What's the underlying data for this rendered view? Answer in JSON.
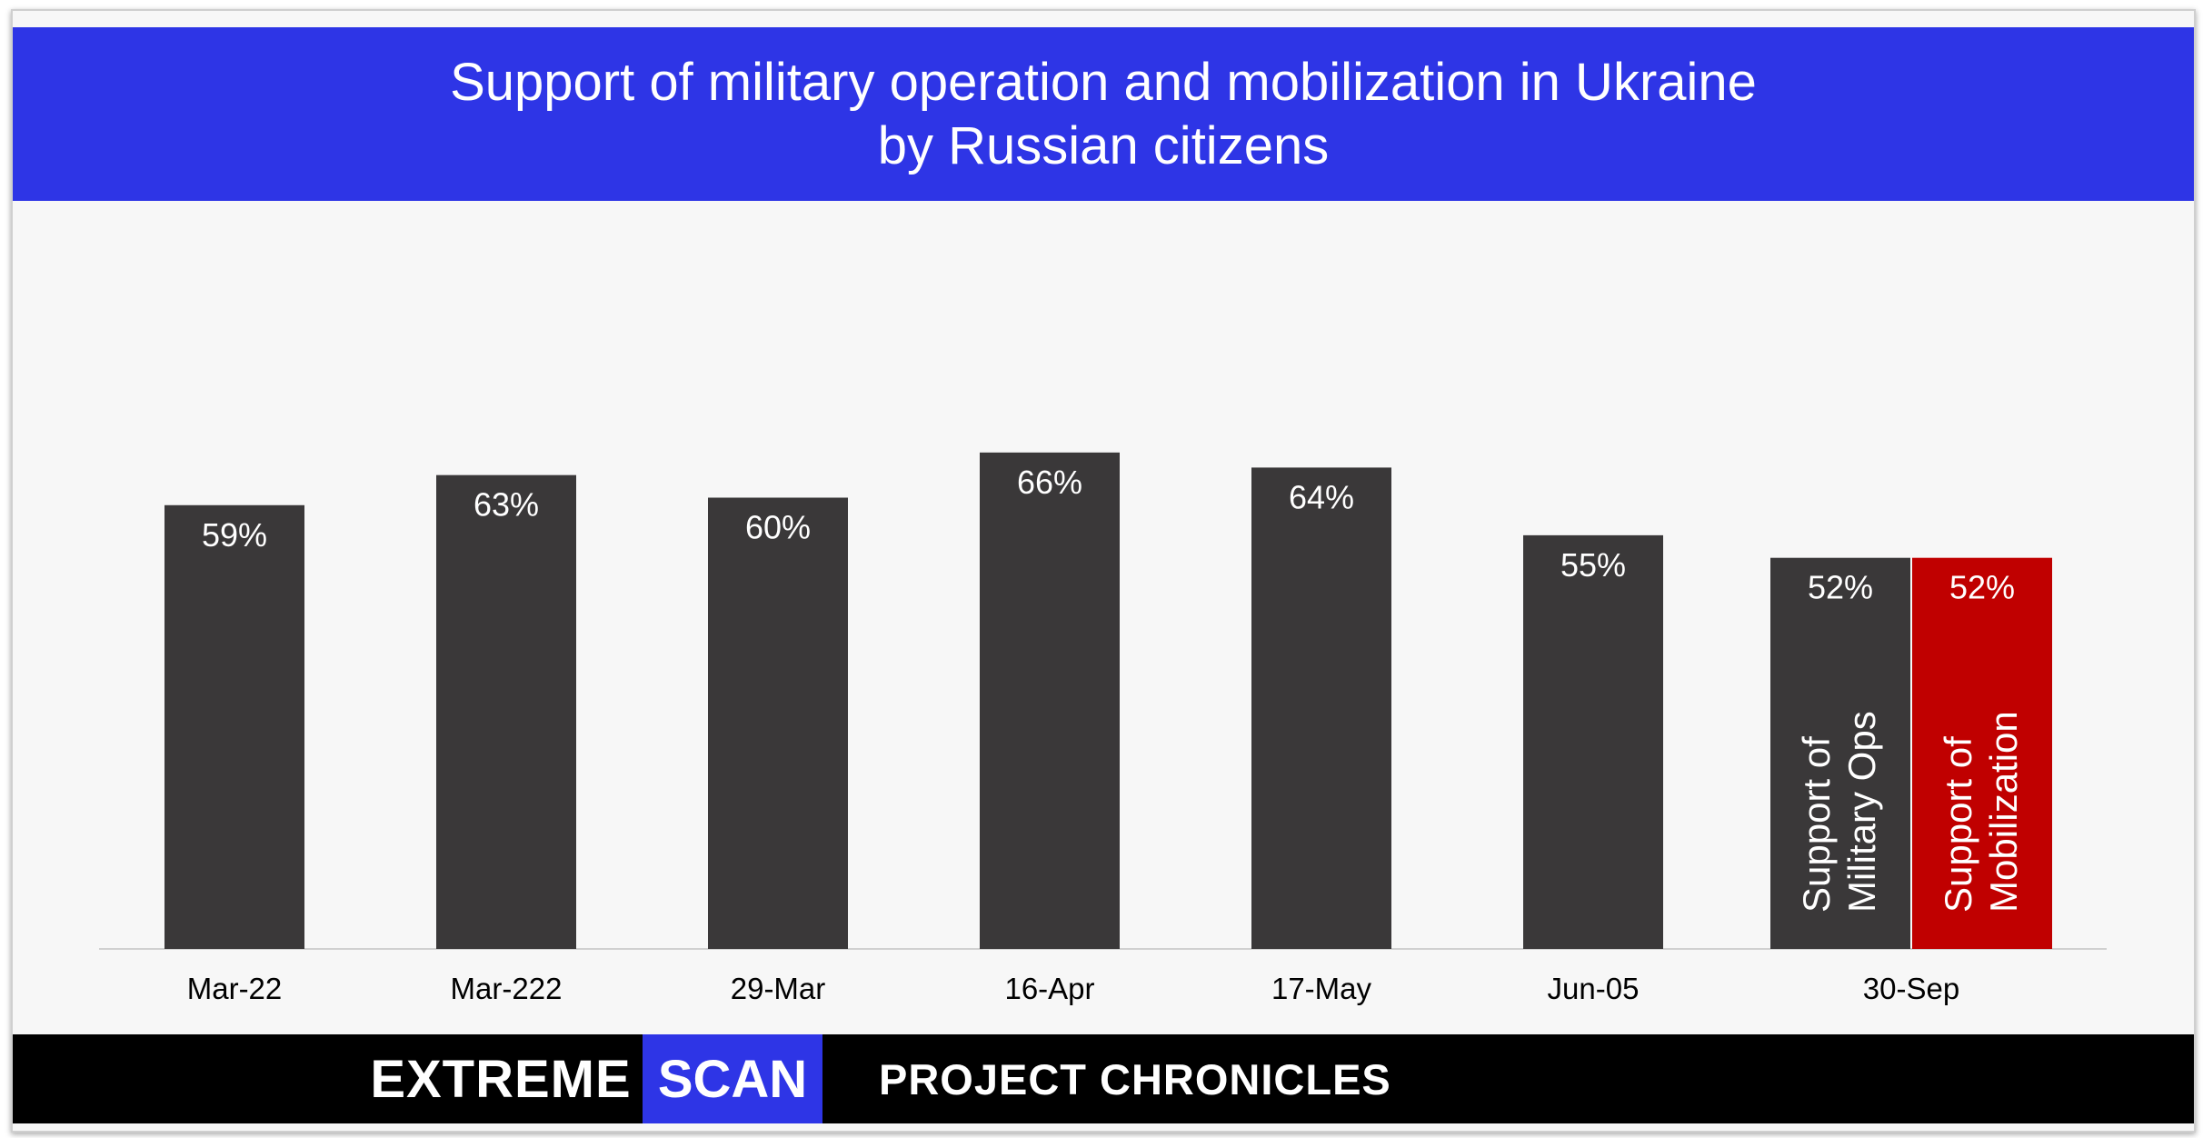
{
  "header": {
    "title_line1": "Support of military operation and mobilization in Ukraine",
    "title_line2": "by Russian citizens"
  },
  "footer": {
    "brand_part1": "EXTREME",
    "brand_part2": "SCAN",
    "project": "PROJECT CHRONICLES"
  },
  "colors": {
    "header_bg": "#2e35e6",
    "bar_dark": "#3a3839",
    "bar_red": "#c00000",
    "footer_bg": "#000000"
  },
  "chart_data": {
    "type": "bar",
    "title": "Support of military operation and mobilization in Ukraine by Russian citizens",
    "categories": [
      "Mar-22",
      "Mar-222",
      "29-Mar",
      "16-Apr",
      "17-May",
      "Jun-05",
      "30-Sep"
    ],
    "series": [
      {
        "name": "Support of Military Ops",
        "values": [
          59,
          63,
          60,
          66,
          64,
          55,
          52
        ],
        "color": "#3a3839",
        "data_labels": [
          "59%",
          "63%",
          "60%",
          "66%",
          "64%",
          "55%",
          "52%"
        ]
      },
      {
        "name": "Support of Mobilization",
        "values": [
          null,
          null,
          null,
          null,
          null,
          null,
          52
        ],
        "color": "#c00000",
        "data_labels": [
          "",
          "",
          "",
          "",
          "",
          "",
          "52%"
        ]
      }
    ],
    "in_bar_labels": [
      {
        "category": "30-Sep",
        "series": "Support of Military Ops",
        "lines": [
          "Support of",
          "Military Ops"
        ]
      },
      {
        "category": "30-Sep",
        "series": "Support of Mobilization",
        "lines": [
          "Support of",
          "Mobilization"
        ]
      }
    ],
    "ylim": [
      0,
      100
    ],
    "grid": false,
    "legend": "none"
  }
}
